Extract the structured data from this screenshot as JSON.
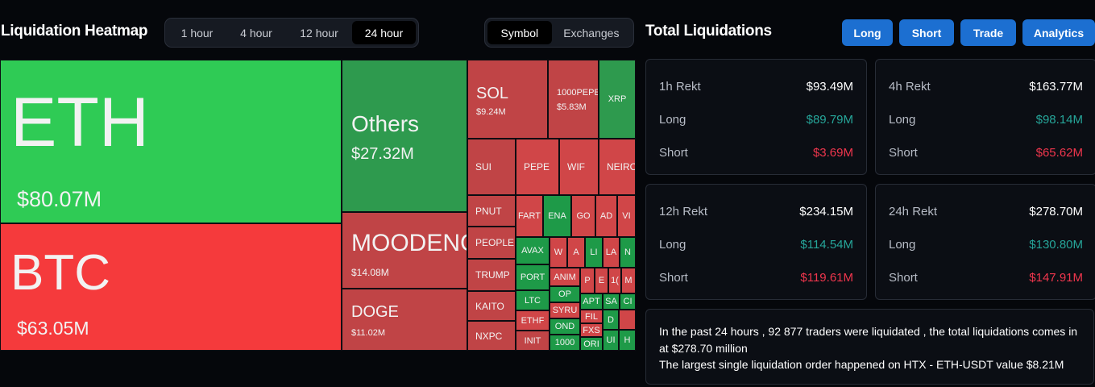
{
  "heatmap": {
    "title": "Liquidation Heatmap",
    "timeframes": [
      "1 hour",
      "4 hour",
      "12 hour",
      "24 hour"
    ],
    "active_timeframe": "24 hour",
    "modes": [
      "Symbol",
      "Exchanges"
    ],
    "active_mode": "Symbol",
    "tiles": {
      "eth": {
        "symbol": "ETH",
        "value": "$80.07M"
      },
      "btc": {
        "symbol": "BTC",
        "value": "$63.05M"
      },
      "others": {
        "symbol": "Others",
        "value": "$27.32M"
      },
      "moodeng": {
        "symbol": "MOODENG",
        "value": "$14.08M"
      },
      "doge": {
        "symbol": "DOGE",
        "value": "$11.02M"
      },
      "sol": {
        "symbol": "SOL",
        "value": "$9.24M"
      },
      "pepe1000": {
        "symbol": "1000PEPE",
        "value": "$5.83M"
      },
      "xrp": {
        "symbol": "XRP"
      },
      "sui": {
        "symbol": "SUI"
      },
      "pepe": {
        "symbol": "PEPE"
      },
      "wif": {
        "symbol": "WIF"
      },
      "neiro": {
        "symbol": "NEIRO"
      },
      "pnut": {
        "symbol": "PNUT"
      },
      "fart": {
        "symbol": "FART"
      },
      "ena": {
        "symbol": "ENA"
      },
      "go": {
        "symbol": "GO"
      },
      "ad": {
        "symbol": "AD"
      },
      "vi": {
        "symbol": "VI"
      },
      "people": {
        "symbol": "PEOPLE"
      },
      "avax": {
        "symbol": "AVAX"
      },
      "trump": {
        "symbol": "TRUMP"
      },
      "port": {
        "symbol": "PORT"
      },
      "kaito": {
        "symbol": "KAITO"
      },
      "ltc": {
        "symbol": "LTC"
      },
      "nxpc": {
        "symbol": "NXPC"
      },
      "ethf": {
        "symbol": "ETHF"
      },
      "init": {
        "symbol": "INIT"
      },
      "anim": {
        "symbol": "ANIM"
      },
      "op": {
        "symbol": "OP"
      },
      "syru": {
        "symbol": "SYRU"
      },
      "ond": {
        "symbol": "OND"
      },
      "t1000": {
        "symbol": "1000"
      },
      "w": {
        "symbol": "W"
      },
      "a": {
        "symbol": "A"
      },
      "li": {
        "symbol": "LI"
      },
      "la": {
        "symbol": "LA"
      },
      "n": {
        "symbol": "N"
      },
      "p": {
        "symbol": "P"
      },
      "e": {
        "symbol": "E"
      },
      "one": {
        "symbol": "1("
      },
      "m": {
        "symbol": "M"
      },
      "apt": {
        "symbol": "APT"
      },
      "sa": {
        "symbol": "SA"
      },
      "ci": {
        "symbol": "CI"
      },
      "fil": {
        "symbol": "FIL"
      },
      "fxs": {
        "symbol": "FXS"
      },
      "d": {
        "symbol": "D"
      },
      "ori": {
        "symbol": "ORI"
      },
      "ui": {
        "symbol": "UI"
      },
      "h": {
        "symbol": "H"
      }
    }
  },
  "total": {
    "title": "Total Liquidations",
    "buttons": [
      "Long",
      "Short",
      "Trade",
      "Analytics"
    ],
    "cards": [
      {
        "label": "1h Rekt",
        "total": "$93.49M",
        "long_label": "Long",
        "long": "$89.79M",
        "short_label": "Short",
        "short": "$3.69M"
      },
      {
        "label": "4h Rekt",
        "total": "$163.77M",
        "long_label": "Long",
        "long": "$98.14M",
        "short_label": "Short",
        "short": "$65.62M"
      },
      {
        "label": "12h Rekt",
        "total": "$234.15M",
        "long_label": "Long",
        "long": "$114.54M",
        "short_label": "Short",
        "short": "$119.61M"
      },
      {
        "label": "24h Rekt",
        "total": "$278.70M",
        "long_label": "Long",
        "long": "$130.80M",
        "short_label": "Short",
        "short": "$147.91M"
      }
    ],
    "summary_line1": "In the past 24 hours , 92 877 traders were liquidated , the total liquidations comes in at $278.70 million",
    "summary_line2": "The largest single liquidation order happened on HTX - ETH-USDT value $8.21M"
  },
  "colors": {
    "long_green": "#26a69a",
    "short_red": "#f0364d",
    "button_blue": "#1c6fd1",
    "heat_green": "#2fcb55",
    "heat_red": "#f53a3c"
  }
}
